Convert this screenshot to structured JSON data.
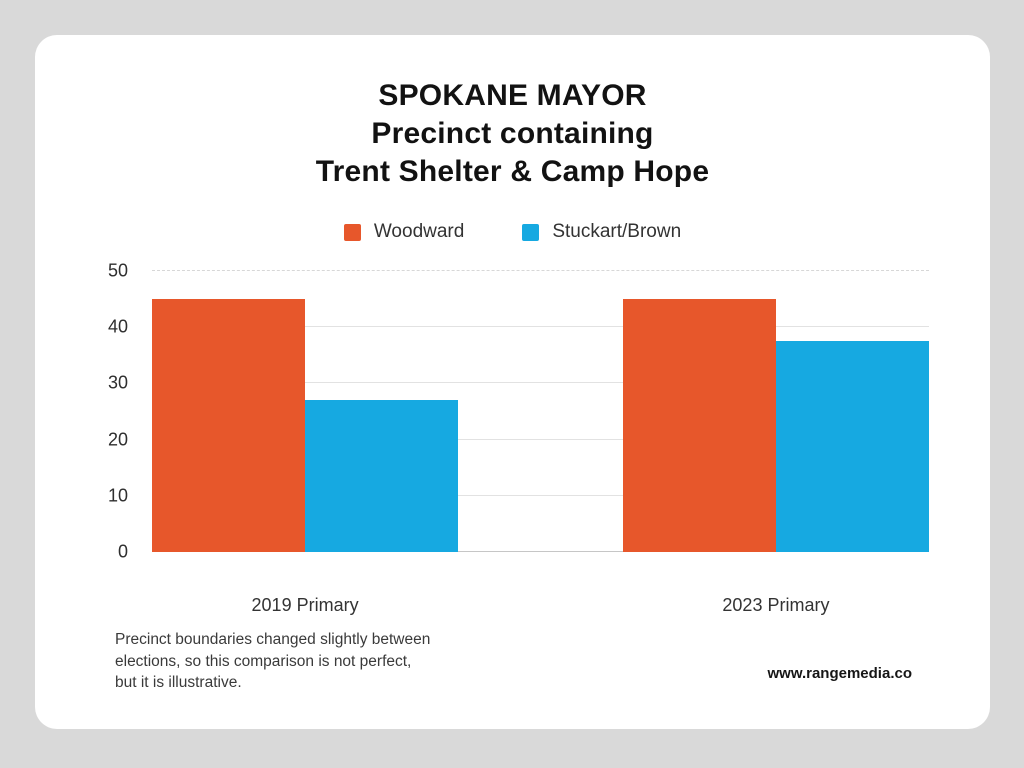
{
  "title": "SPOKANE MAYOR\nPrecinct containing\nTrent Shelter & Camp Hope",
  "footnote": "Precinct boundaries changed slightly between\nelections, so this comparison is not perfect,\nbut it is illustrative.",
  "website": "www.rangemedia.co",
  "colors": {
    "background": "#d9d9d9",
    "card": "#ffffff",
    "woodward": "#e7572b",
    "stuckart_brown": "#16a9e1",
    "gridline": "#e2e2e2",
    "axis_line": "#c6c6c6"
  },
  "chart_data": {
    "type": "bar",
    "title": "SPOKANE MAYOR\nPrecinct containing\nTrent Shelter & Camp Hope",
    "categories": [
      "2019 Primary",
      "2023 Primary"
    ],
    "series": [
      {
        "name": "Woodward",
        "color": "#e7572b",
        "values": [
          45,
          45
        ]
      },
      {
        "name": "Stuckart/Brown",
        "color": "#16a9e1",
        "values": [
          27,
          37.5
        ]
      }
    ],
    "xlabel": "",
    "ylabel": "",
    "ylim": [
      0,
      50
    ],
    "yticks": [
      0,
      10,
      20,
      30,
      40,
      50
    ],
    "grid": true,
    "legend_position": "top"
  }
}
